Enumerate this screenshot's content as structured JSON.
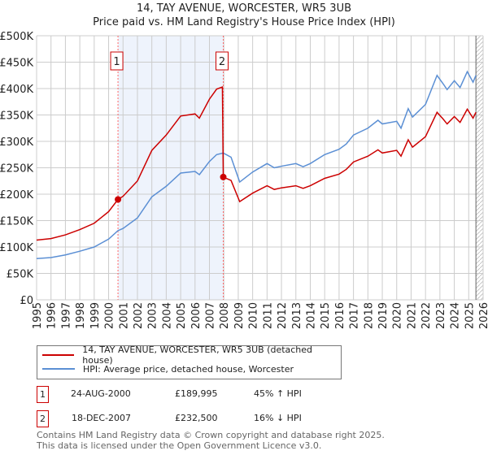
{
  "chart_data": {
    "type": "line",
    "title": "14, TAY AVENUE, WORCESTER, WR5 3UB",
    "subtitle": "Price paid vs. HM Land Registry's House Price Index (HPI)",
    "xlim": [
      1995,
      2026
    ],
    "ylim": [
      0,
      500000
    ],
    "x_ticks": [
      "1995",
      "1996",
      "1997",
      "1998",
      "1999",
      "2000",
      "2001",
      "2002",
      "2003",
      "2004",
      "2005",
      "2006",
      "2007",
      "2008",
      "2009",
      "2010",
      "2011",
      "2012",
      "2013",
      "2014",
      "2015",
      "2016",
      "2017",
      "2018",
      "2019",
      "2020",
      "2021",
      "2022",
      "2023",
      "2024",
      "2025",
      "2026"
    ],
    "y_ticks": [
      {
        "v": 0,
        "label": "£0"
      },
      {
        "v": 50000,
        "label": "£50K"
      },
      {
        "v": 100000,
        "label": "£100K"
      },
      {
        "v": 150000,
        "label": "£150K"
      },
      {
        "v": 200000,
        "label": "£200K"
      },
      {
        "v": 250000,
        "label": "£250K"
      },
      {
        "v": 300000,
        "label": "£300K"
      },
      {
        "v": 350000,
        "label": "£350K"
      },
      {
        "v": 400000,
        "label": "£400K"
      },
      {
        "v": 450000,
        "label": "£450K"
      },
      {
        "v": 500000,
        "label": "£500K"
      }
    ],
    "grid": true,
    "shaded_range": [
      2000.65,
      2007.96
    ],
    "forecast_hatch_from": 2025.5,
    "series": [
      {
        "name": "14, TAY AVENUE, WORCESTER, WR5 3UB (detached house)",
        "color": "#cc0000",
        "x": [
          1995,
          1996,
          1997,
          1998,
          1999,
          2000,
          2000.65,
          2001,
          2002,
          2003,
          2004,
          2005,
          2006,
          2006.3,
          2007,
          2007.5,
          2007.9,
          2007.96,
          2008.5,
          2009.1,
          2010,
          2011,
          2011.5,
          2012,
          2013,
          2013.5,
          2014,
          2015,
          2016,
          2016.5,
          2017,
          2018,
          2018.7,
          2019,
          2020,
          2020.3,
          2020.8,
          2021.1,
          2022,
          2022.8,
          2023.2,
          2023.5,
          2024,
          2024.4,
          2024.9,
          2025.3,
          2025.5
        ],
        "y": [
          113000,
          116000,
          123000,
          133000,
          145000,
          167000,
          190000,
          196000,
          225000,
          283000,
          312000,
          348000,
          352000,
          344000,
          380000,
          399000,
          403000,
          232500,
          226000,
          186000,
          202000,
          216000,
          209000,
          212000,
          216000,
          211000,
          216000,
          230000,
          238000,
          247000,
          261000,
          272000,
          284000,
          278000,
          283000,
          272000,
          303000,
          289000,
          309000,
          355000,
          343000,
          333000,
          347000,
          336000,
          361000,
          344000,
          355000
        ]
      },
      {
        "name": "HPI: Average price, detached house, Worcester",
        "color": "#5b8fd4",
        "x": [
          1995,
          1996,
          1997,
          1998,
          1999,
          2000,
          2000.65,
          2001,
          2002,
          2003,
          2004,
          2005,
          2006,
          2006.3,
          2007,
          2007.5,
          2007.96,
          2008.5,
          2009.1,
          2010,
          2011,
          2011.5,
          2012,
          2013,
          2013.5,
          2014,
          2015,
          2016,
          2016.5,
          2017,
          2018,
          2018.7,
          2019,
          2020,
          2020.3,
          2020.8,
          2021.1,
          2022,
          2022.8,
          2023.2,
          2023.5,
          2024,
          2024.4,
          2024.9,
          2025.3,
          2025.5
        ],
        "y": [
          78000,
          80000,
          85000,
          92000,
          100000,
          115000,
          131000,
          135000,
          155000,
          195000,
          215000,
          240000,
          243000,
          237000,
          262000,
          275000,
          278000,
          270000,
          223000,
          242000,
          258000,
          250000,
          253000,
          258000,
          252000,
          258000,
          275000,
          285000,
          295000,
          312000,
          325000,
          340000,
          333000,
          338000,
          325000,
          362000,
          346000,
          370000,
          425000,
          410000,
          398000,
          415000,
          402000,
          432000,
          412000,
          425000
        ]
      }
    ],
    "sales": [
      {
        "id": "1",
        "x": 2000.65,
        "y": 189995,
        "date": "24-AUG-2000",
        "price": "£189,995",
        "hpi": "45% ↑ HPI"
      },
      {
        "id": "2",
        "x": 2007.96,
        "y": 232500,
        "date": "18-DEC-2007",
        "price": "£232,500",
        "hpi": "16% ↓ HPI"
      }
    ]
  },
  "footer": {
    "line1": "Contains HM Land Registry data © Crown copyright and database right 2025.",
    "line2": "This data is licensed under the Open Government Licence v3.0."
  }
}
